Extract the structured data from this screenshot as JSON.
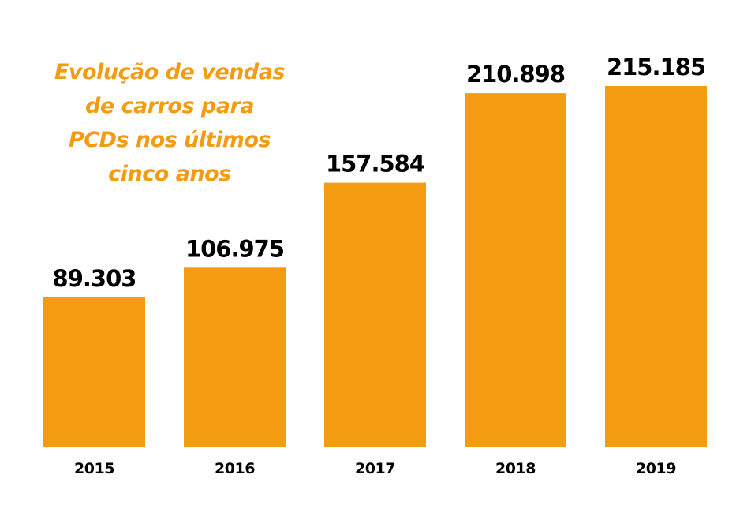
{
  "chart_data": {
    "type": "bar",
    "title_lines": [
      "Evolução de vendas",
      "de carros para",
      "PCDs nos últimos",
      "cinco anos"
    ],
    "categories": [
      "2015",
      "2016",
      "2017",
      "2018",
      "2019"
    ],
    "values": [
      89303,
      106975,
      157584,
      210898,
      215185
    ],
    "value_labels": [
      "89.303",
      "106.975",
      "157.584",
      "210.898",
      "215.185"
    ],
    "xlabel": "",
    "ylabel": "",
    "ylim": [
      0,
      215185
    ],
    "grid": false,
    "legend": "none",
    "colors": {
      "bar": "#f39c12",
      "title": "#f39c12",
      "label": "#000000"
    }
  }
}
